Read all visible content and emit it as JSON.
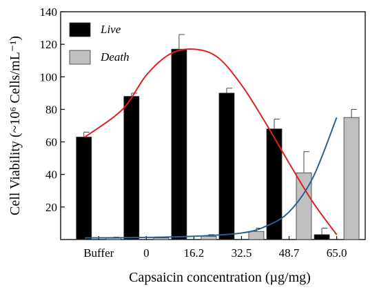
{
  "chart_data": {
    "type": "bar",
    "categories": [
      "Buffer",
      "0",
      "16.2",
      "32.5",
      "48.7",
      "65.0"
    ],
    "series": [
      {
        "name": "Live",
        "color": "#000000",
        "values": [
          63,
          88,
          117,
          90,
          68,
          3
        ],
        "errors": [
          3,
          2,
          9,
          3,
          6,
          4
        ]
      },
      {
        "name": "Death",
        "color": "#c0c0c0",
        "values": [
          1,
          1,
          2,
          5,
          41,
          75
        ],
        "errors": [
          0.5,
          0.5,
          1,
          2,
          13,
          5
        ]
      }
    ],
    "fit_curves": [
      {
        "series": "Live",
        "color": "#e02020",
        "points": [
          [
            0,
            63
          ],
          [
            0.5,
            80
          ],
          [
            1,
            101
          ],
          [
            1.5,
            114
          ],
          [
            2,
            117
          ],
          [
            2.5,
            112
          ],
          [
            3,
            95
          ],
          [
            3.5,
            72
          ],
          [
            4,
            47
          ],
          [
            4.5,
            23
          ],
          [
            5,
            3
          ]
        ]
      },
      {
        "series": "Death",
        "color": "#2a5f8f",
        "points": [
          [
            0,
            1
          ],
          [
            1,
            1.3
          ],
          [
            2,
            2
          ],
          [
            3,
            4
          ],
          [
            3.5,
            8
          ],
          [
            4,
            17
          ],
          [
            4.5,
            38
          ],
          [
            5,
            75
          ]
        ]
      }
    ],
    "xlabel": "Capsaicin concentration (µg/mg)",
    "ylabel": "Cell Viability  (~10⁶ Cells/mL⁻¹)",
    "ylim": [
      0,
      140
    ],
    "yticks": [
      20,
      40,
      60,
      80,
      100,
      120,
      140
    ],
    "legend_position": "top-left",
    "grid": false
  }
}
